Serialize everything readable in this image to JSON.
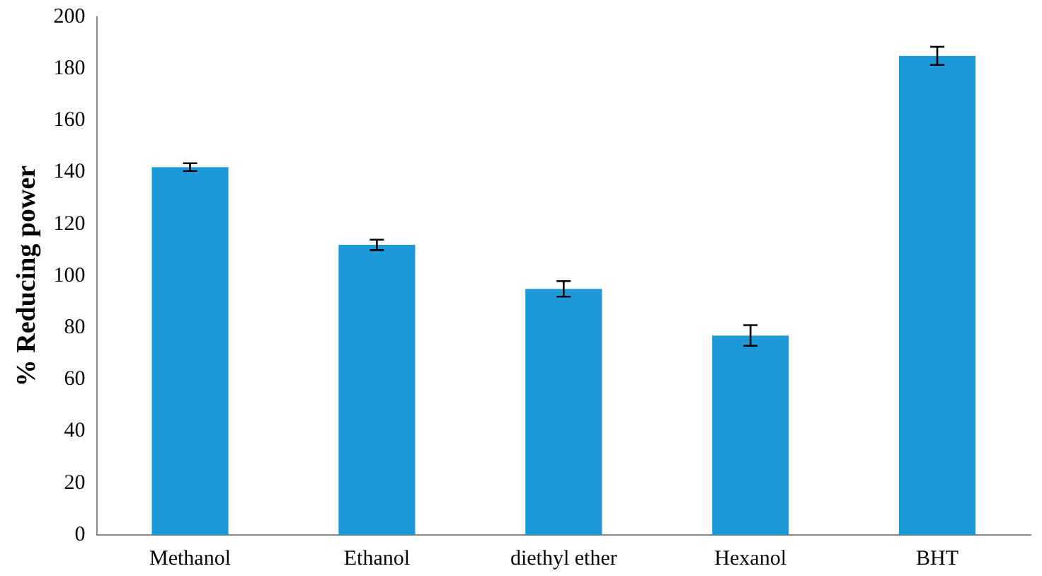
{
  "chart_data": {
    "type": "bar",
    "ylabel": "% Reducing power",
    "categories": [
      "Methanol",
      "Ethanol",
      "diethyl ether",
      "Hexanol",
      "BHT"
    ],
    "values": [
      142,
      112,
      95,
      77,
      185
    ],
    "errors": [
      1.5,
      2,
      3,
      4,
      3.5
    ],
    "color": "#1e9ad8",
    "ylim": [
      0,
      200
    ],
    "yticks": [
      0,
      20,
      40,
      60,
      80,
      100,
      120,
      140,
      160,
      180,
      200
    ],
    "grid": false,
    "legend": false
  }
}
